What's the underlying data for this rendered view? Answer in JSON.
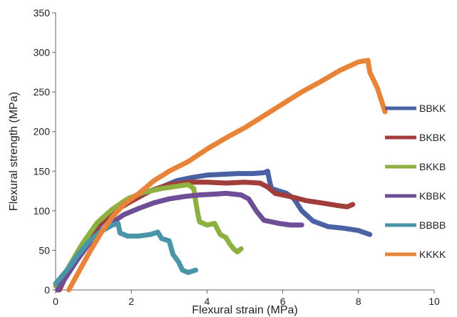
{
  "chart_data": {
    "type": "line",
    "title": "",
    "xlabel": "Flexural strain (MPa)",
    "ylabel": "Flexural strength (MPa)",
    "xlim": [
      0,
      10
    ],
    "ylim": [
      0,
      350
    ],
    "x_ticks": [
      0,
      2,
      4,
      6,
      8,
      10
    ],
    "y_ticks": [
      0,
      50,
      100,
      150,
      200,
      250,
      300,
      350
    ],
    "grid": false,
    "legend_position": "right",
    "series": [
      {
        "name": "BBKK",
        "color": "#4A62A4",
        "points": [
          [
            0.05,
            0
          ],
          [
            0.3,
            22
          ],
          [
            0.6,
            45
          ],
          [
            1.0,
            72
          ],
          [
            1.4,
            95
          ],
          [
            1.8,
            110
          ],
          [
            2.3,
            122
          ],
          [
            2.8,
            130
          ],
          [
            3.2,
            138
          ],
          [
            3.6,
            142
          ],
          [
            4.0,
            145
          ],
          [
            4.4,
            146
          ],
          [
            4.8,
            147
          ],
          [
            5.2,
            147
          ],
          [
            5.5,
            148
          ],
          [
            5.6,
            150
          ],
          [
            5.65,
            138
          ],
          [
            5.7,
            128
          ],
          [
            5.9,
            125
          ],
          [
            6.1,
            122
          ],
          [
            6.3,
            115
          ],
          [
            6.5,
            100
          ],
          [
            6.8,
            87
          ],
          [
            7.2,
            80
          ],
          [
            7.6,
            78
          ],
          [
            8.0,
            75
          ],
          [
            8.3,
            70
          ]
        ]
      },
      {
        "name": "BKBK",
        "color": "#A13D3A",
        "points": [
          [
            0.1,
            0
          ],
          [
            0.3,
            20
          ],
          [
            0.5,
            40
          ],
          [
            0.8,
            60
          ],
          [
            1.1,
            80
          ],
          [
            1.5,
            98
          ],
          [
            2.0,
            112
          ],
          [
            2.5,
            125
          ],
          [
            3.0,
            133
          ],
          [
            3.5,
            136
          ],
          [
            4.0,
            136
          ],
          [
            4.5,
            135
          ],
          [
            5.0,
            136
          ],
          [
            5.4,
            135
          ],
          [
            5.6,
            130
          ],
          [
            5.8,
            122
          ],
          [
            6.2,
            118
          ],
          [
            6.6,
            113
          ],
          [
            7.0,
            110
          ],
          [
            7.4,
            107
          ],
          [
            7.7,
            105
          ],
          [
            7.85,
            108
          ]
        ]
      },
      {
        "name": "BKKB",
        "color": "#8DB040",
        "points": [
          [
            0.0,
            5
          ],
          [
            0.3,
            25
          ],
          [
            0.7,
            58
          ],
          [
            1.1,
            85
          ],
          [
            1.5,
            102
          ],
          [
            1.9,
            115
          ],
          [
            2.3,
            123
          ],
          [
            2.8,
            128
          ],
          [
            3.2,
            131
          ],
          [
            3.5,
            133
          ],
          [
            3.65,
            128
          ],
          [
            3.7,
            112
          ],
          [
            3.75,
            98
          ],
          [
            3.8,
            86
          ],
          [
            4.0,
            82
          ],
          [
            4.2,
            84
          ],
          [
            4.35,
            70
          ],
          [
            4.5,
            66
          ],
          [
            4.6,
            58
          ],
          [
            4.7,
            52
          ],
          [
            4.8,
            48
          ],
          [
            4.9,
            52
          ]
        ]
      },
      {
        "name": "KBBK",
        "color": "#6E4E97",
        "points": [
          [
            0.05,
            0
          ],
          [
            0.3,
            18
          ],
          [
            0.6,
            40
          ],
          [
            1.0,
            66
          ],
          [
            1.4,
            82
          ],
          [
            1.8,
            95
          ],
          [
            2.2,
            103
          ],
          [
            2.6,
            110
          ],
          [
            3.0,
            115
          ],
          [
            3.4,
            118
          ],
          [
            3.8,
            120
          ],
          [
            4.2,
            121
          ],
          [
            4.5,
            122
          ],
          [
            4.9,
            120
          ],
          [
            5.1,
            115
          ],
          [
            5.3,
            100
          ],
          [
            5.5,
            88
          ],
          [
            5.9,
            84
          ],
          [
            6.2,
            82
          ],
          [
            6.5,
            82
          ]
        ]
      },
      {
        "name": "BBBB",
        "color": "#4A95A8",
        "points": [
          [
            0.0,
            8
          ],
          [
            0.3,
            25
          ],
          [
            0.6,
            45
          ],
          [
            0.9,
            62
          ],
          [
            1.2,
            74
          ],
          [
            1.5,
            82
          ],
          [
            1.65,
            84
          ],
          [
            1.7,
            72
          ],
          [
            1.9,
            68
          ],
          [
            2.2,
            68
          ],
          [
            2.5,
            70
          ],
          [
            2.7,
            73
          ],
          [
            2.8,
            65
          ],
          [
            3.0,
            62
          ],
          [
            3.1,
            45
          ],
          [
            3.25,
            35
          ],
          [
            3.35,
            25
          ],
          [
            3.5,
            22
          ],
          [
            3.7,
            25
          ]
        ]
      },
      {
        "name": "KKKK",
        "color": "#E8843A",
        "points": [
          [
            0.35,
            0
          ],
          [
            0.6,
            22
          ],
          [
            0.9,
            48
          ],
          [
            1.2,
            72
          ],
          [
            1.5,
            92
          ],
          [
            1.8,
            108
          ],
          [
            2.2,
            122
          ],
          [
            2.6,
            138
          ],
          [
            3.0,
            150
          ],
          [
            3.5,
            162
          ],
          [
            4.0,
            178
          ],
          [
            4.5,
            192
          ],
          [
            5.0,
            205
          ],
          [
            5.5,
            220
          ],
          [
            6.0,
            235
          ],
          [
            6.5,
            250
          ],
          [
            7.0,
            263
          ],
          [
            7.5,
            277
          ],
          [
            8.0,
            288
          ],
          [
            8.25,
            290
          ],
          [
            8.3,
            275
          ],
          [
            8.4,
            265
          ],
          [
            8.5,
            255
          ],
          [
            8.6,
            240
          ],
          [
            8.7,
            225
          ]
        ]
      }
    ]
  }
}
